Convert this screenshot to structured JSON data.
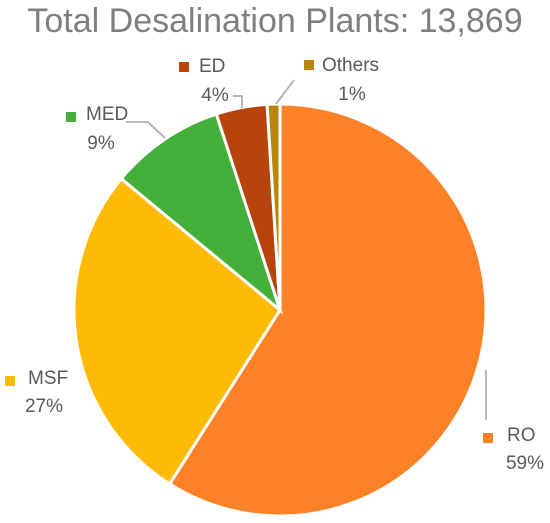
{
  "chart_data": {
    "type": "pie",
    "title": "Total Desalination Plants: 13,869",
    "categories": [
      "RO",
      "MSF",
      "MED",
      "ED",
      "Others"
    ],
    "values": [
      59,
      27,
      9,
      4,
      1
    ],
    "value_labels": [
      "59%",
      "27%",
      "9%",
      "4%",
      "1%"
    ],
    "unit": "%",
    "legend": "none",
    "data_labels": "category name and percent with leader lines",
    "colors": [
      "#fd8127",
      "#fdbb05",
      "#45b039",
      "#b8440d",
      "#b8860b"
    ]
  }
}
